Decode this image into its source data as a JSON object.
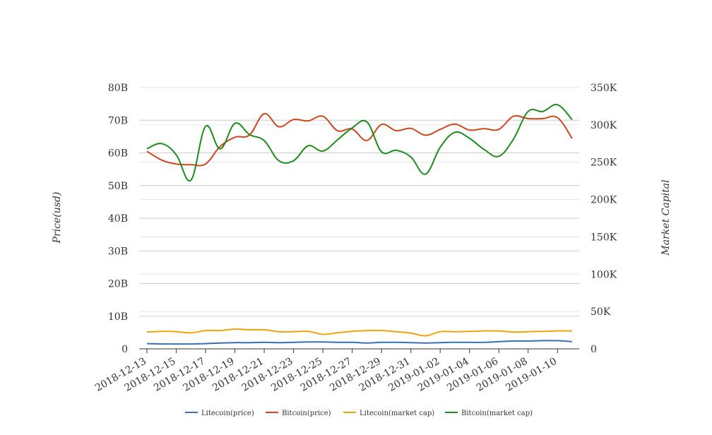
{
  "chart_data": {
    "type": "line",
    "title": "",
    "ylabel_left": "Price(usd)",
    "ylabel_right": "Market Capital",
    "left_axis": {
      "min": 0,
      "max": 80000000000,
      "ticks": [
        "0",
        "10B",
        "20B",
        "30B",
        "40B",
        "50B",
        "60B",
        "70B",
        "80B"
      ]
    },
    "right_axis": {
      "min": 0,
      "max": 350000,
      "ticks": [
        "0",
        "50K",
        "100K",
        "150K",
        "200K",
        "250K",
        "300K",
        "350K"
      ]
    },
    "x_tick_labels": [
      "2018-12-13",
      "2018-12-15",
      "2018-12-17",
      "2018-12-19",
      "2018-12-21",
      "2018-12-23",
      "2018-12-25",
      "2018-12-27",
      "2018-12-29",
      "2018-12-31",
      "2019-01-02",
      "2019-01-04",
      "2019-01-06",
      "2019-01-08",
      "2019-01-10"
    ],
    "x": [
      "2018-12-13",
      "2018-12-14",
      "2018-12-15",
      "2018-12-16",
      "2018-12-17",
      "2018-12-18",
      "2018-12-19",
      "2018-12-20",
      "2018-12-21",
      "2018-12-22",
      "2018-12-23",
      "2018-12-24",
      "2018-12-25",
      "2018-12-26",
      "2018-12-27",
      "2018-12-28",
      "2018-12-29",
      "2018-12-30",
      "2018-12-31",
      "2019-01-01",
      "2019-01-02",
      "2019-01-03",
      "2019-01-04",
      "2019-01-05",
      "2019-01-06",
      "2019-01-07",
      "2019-01-08",
      "2019-01-09",
      "2019-01-10",
      "2019-01-11"
    ],
    "grid": true,
    "legend_position": "bottom",
    "series": [
      {
        "name": "Litecoin(price)",
        "axis": "left",
        "color": "#3a6eb5",
        "values": [
          1600000000,
          1500000000,
          1500000000,
          1500000000,
          1600000000,
          1800000000,
          1900000000,
          1900000000,
          2000000000,
          1900000000,
          2000000000,
          2100000000,
          2100000000,
          2000000000,
          2000000000,
          1800000000,
          2000000000,
          2000000000,
          1900000000,
          1800000000,
          1900000000,
          2000000000,
          2000000000,
          2000000000,
          2200000000,
          2400000000,
          2400000000,
          2500000000,
          2500000000,
          2200000000
        ]
      },
      {
        "name": "Bitcoin(price)",
        "axis": "left",
        "color": "#d1451b",
        "values": [
          60500000000,
          57800000000,
          56600000000,
          56400000000,
          56600000000,
          62000000000,
          64800000000,
          65500000000,
          72000000000,
          68000000000,
          70200000000,
          69800000000,
          71200000000,
          66800000000,
          67300000000,
          63800000000,
          68700000000,
          66800000000,
          67500000000,
          65400000000,
          67200000000,
          68800000000,
          67000000000,
          67400000000,
          67200000000,
          71200000000,
          70500000000,
          70500000000,
          70800000000,
          64400000000
        ]
      },
      {
        "name": "Litecoin(market cap)",
        "axis": "right",
        "color": "#f0a30a",
        "values": [
          22500,
          23500,
          23000,
          21500,
          24500,
          24500,
          26500,
          25500,
          25500,
          23000,
          23000,
          23500,
          19500,
          21500,
          23500,
          24500,
          24500,
          23000,
          21000,
          17500,
          23000,
          23000,
          23500,
          24000,
          24000,
          22500,
          23000,
          23500,
          24000,
          24000
        ]
      },
      {
        "name": "Bitcoin(market cap)",
        "axis": "right",
        "color": "#1a8c1a",
        "values": [
          268000,
          275000,
          260000,
          226000,
          298000,
          268000,
          302000,
          287000,
          279000,
          252000,
          252000,
          272000,
          265000,
          280000,
          296000,
          304000,
          264000,
          266000,
          257000,
          234000,
          270000,
          290000,
          282000,
          267000,
          258000,
          281000,
          318000,
          318000,
          327000,
          307000
        ]
      }
    ]
  }
}
